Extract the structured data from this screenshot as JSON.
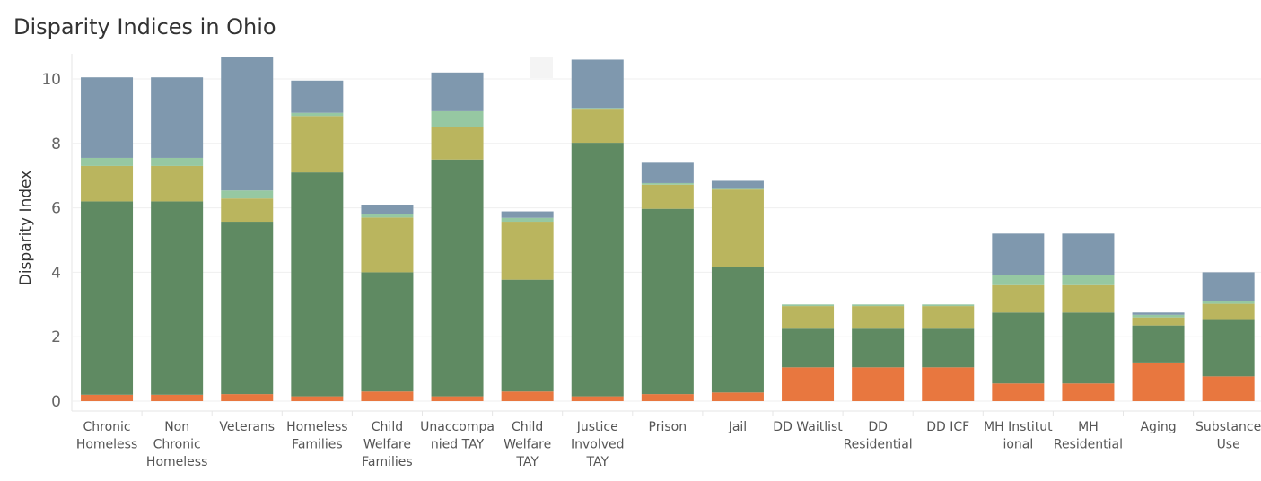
{
  "title": "Disparity Indices in Ohio",
  "chart_data": {
    "type": "bar",
    "stacked": true,
    "title": "Disparity Indices in Ohio",
    "xlabel": "",
    "ylabel": "Disparity Index",
    "ylim": [
      -0.3,
      10.9
    ],
    "yticks": [
      0,
      2,
      4,
      6,
      8,
      10
    ],
    "grid": true,
    "legend": "none",
    "categories": [
      [
        "Chronic",
        "Homeless"
      ],
      [
        "Non",
        "Chronic",
        "Homeless"
      ],
      [
        "Veterans"
      ],
      [
        "Homeless",
        "Families"
      ],
      [
        "Child",
        "Welfare",
        "Families"
      ],
      [
        "Unaccompa",
        "nied TAY"
      ],
      [
        "Child",
        "Welfare",
        "TAY"
      ],
      [
        "Justice",
        "Involved",
        "TAY"
      ],
      [
        "Prison"
      ],
      [
        "Jail"
      ],
      [
        "DD Waitlist"
      ],
      [
        "DD",
        "Residential"
      ],
      [
        "DD ICF"
      ],
      [
        "MH Institut",
        "ional"
      ],
      [
        "MH",
        "Residential"
      ],
      [
        "Aging"
      ],
      [
        "Substance",
        "Use"
      ]
    ],
    "series": [
      {
        "color": "#e8773f",
        "values": [
          0.2,
          0.2,
          0.22,
          0.15,
          0.3,
          0.15,
          0.3,
          0.15,
          0.22,
          0.27,
          1.05,
          1.05,
          1.05,
          0.55,
          0.55,
          1.2,
          0.77
        ]
      },
      {
        "color": "#5f8a62",
        "values": [
          6.0,
          6.0,
          5.35,
          6.95,
          3.7,
          7.35,
          3.47,
          7.87,
          5.75,
          3.9,
          1.2,
          1.2,
          1.2,
          2.2,
          2.2,
          1.15,
          1.75
        ]
      },
      {
        "color": "#bab55e",
        "values": [
          1.1,
          1.1,
          0.72,
          1.75,
          1.7,
          1.0,
          1.8,
          1.03,
          0.75,
          2.4,
          0.7,
          0.7,
          0.7,
          0.85,
          0.85,
          0.25,
          0.5
        ]
      },
      {
        "color": "#96c8a2",
        "values": [
          0.25,
          0.25,
          0.25,
          0.1,
          0.12,
          0.5,
          0.12,
          0.05,
          0.05,
          0.02,
          0.05,
          0.05,
          0.05,
          0.3,
          0.3,
          0.08,
          0.1
        ]
      },
      {
        "color": "#7f98ae",
        "values": [
          2.5,
          2.5,
          4.15,
          1.0,
          0.28,
          1.2,
          0.2,
          1.5,
          0.63,
          0.25,
          0.0,
          0.0,
          0.0,
          1.3,
          1.3,
          0.07,
          0.88
        ]
      }
    ]
  }
}
